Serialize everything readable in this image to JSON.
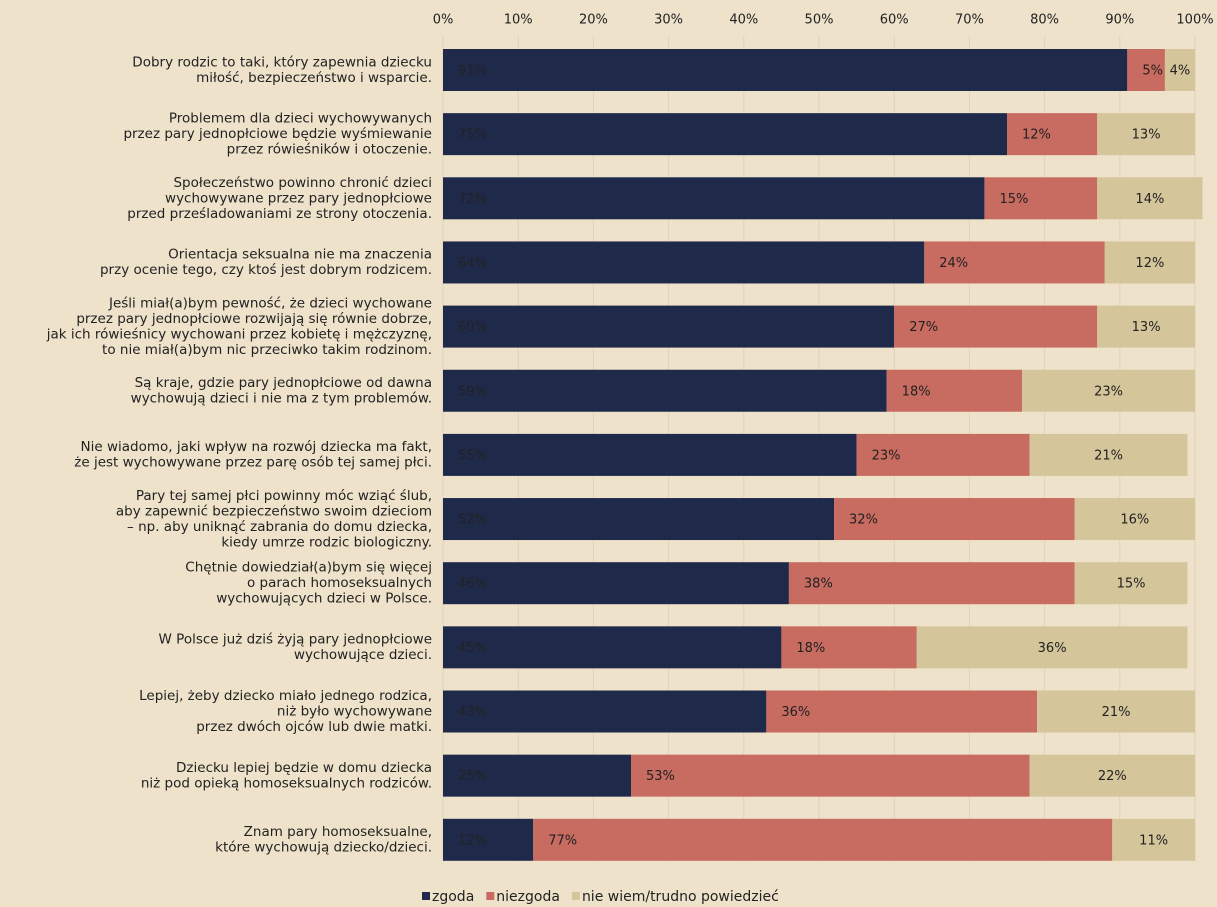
{
  "chart_data": {
    "type": "stacked-barh",
    "categories": [
      [
        "Dobry rodzic to taki, który zapewnia dziecku",
        "miłość, bezpieczeństwo i wsparcie."
      ],
      [
        "Problemem dla dzieci wychowywanych",
        "przez pary jednopłciowe będzie wyśmiewanie",
        "przez rówieśników i otoczenie."
      ],
      [
        "Społeczeństwo powinno chronić dzieci",
        "wychowywane przez pary jednopłciowe",
        "przed prześladowaniami ze strony otoczenia."
      ],
      [
        "Orientacja seksualna nie ma znaczenia",
        "przy ocenie tego, czy ktoś jest dobrym rodzicem."
      ],
      [
        "Jeśli miał(a)bym pewność, że dzieci wychowane",
        "przez pary jednopłciowe rozwijają się równie dobrze,",
        "jak ich rówieśnicy wychowani przez kobietę i mężczyznę,",
        "to nie miał(a)bym nic przeciwko takim rodzinom."
      ],
      [
        "Są kraje, gdzie pary jednopłciowe od dawna",
        "wychowują dzieci  i nie ma z tym problemów."
      ],
      [
        "Nie wiadomo, jaki wpływ na rozwój dziecka ma fakt,",
        "że jest wychowywane przez parę osób tej samej płci."
      ],
      [
        "Pary tej samej płci powinny móc wziąć ślub,",
        "aby zapewnić bezpieczeństwo swoim dzieciom",
        "– np. aby uniknąć zabrania do domu dziecka,",
        "kiedy umrze rodzic biologiczny."
      ],
      [
        "Chętnie dowiedział(a)bym się więcej",
        "o parach homoseksualnych",
        "wychowujących dzieci w Polsce."
      ],
      [
        "W Polsce już dziś żyją pary jednopłciowe",
        "wychowujące dzieci."
      ],
      [
        "Lepiej, żeby dziecko miało jednego rodzica,",
        "niż było wychowywane",
        "przez dwóch ojców lub dwie matki."
      ],
      [
        "Dziecku lepiej będzie w domu dziecka",
        "niż pod opieką homoseksualnych rodziców."
      ],
      [
        "Znam pary homoseksualne,",
        "które  wychowują dziecko/dzieci."
      ]
    ],
    "series": [
      {
        "name": "zgoda",
        "color": "#1f2a4b",
        "values": [
          91,
          75,
          72,
          64,
          60,
          59,
          55,
          52,
          46,
          45,
          43,
          25,
          12
        ],
        "value_labels": [
          "91%",
          "75%",
          "72%",
          "64%",
          "60%",
          "59%",
          "55%",
          "52%",
          "46%",
          "45%",
          "43%",
          "25%",
          "12%"
        ]
      },
      {
        "name": "niezgoda",
        "color": "#c86b60",
        "values": [
          5,
          12,
          15,
          24,
          27,
          18,
          23,
          32,
          38,
          18,
          36,
          53,
          77
        ],
        "value_labels": [
          "5%",
          "12%",
          "15%",
          "24%",
          "27%",
          "18%",
          "23%",
          "32%",
          "38%",
          "18%",
          "36%",
          "53%",
          "77%"
        ]
      },
      {
        "name": "nie wiem/trudno powiedzieć",
        "color": "#d5c59b",
        "values": [
          4,
          13,
          14,
          12,
          13,
          23,
          21,
          16,
          15,
          36,
          21,
          22,
          11
        ],
        "value_labels": [
          "4%",
          "13%",
          "14%",
          "12%",
          "13%",
          "23%",
          "21%",
          "16%",
          "15%",
          "36%",
          "21%",
          "22%",
          "11%"
        ]
      }
    ],
    "xlim": [
      0,
      100
    ],
    "xticks": [
      {
        "value": 0,
        "label": "0%"
      },
      {
        "value": 10,
        "label": "10%"
      },
      {
        "value": 20,
        "label": "20%"
      },
      {
        "value": 30,
        "label": "30%"
      },
      {
        "value": 40,
        "label": "40%"
      },
      {
        "value": 50,
        "label": "50%"
      },
      {
        "value": 60,
        "label": "60%"
      },
      {
        "value": 70,
        "label": "70%"
      },
      {
        "value": 80,
        "label": "80%"
      },
      {
        "value": 90,
        "label": "90%"
      },
      {
        "value": 100,
        "label": "100%"
      }
    ],
    "grid": true,
    "legend": "bottom"
  }
}
